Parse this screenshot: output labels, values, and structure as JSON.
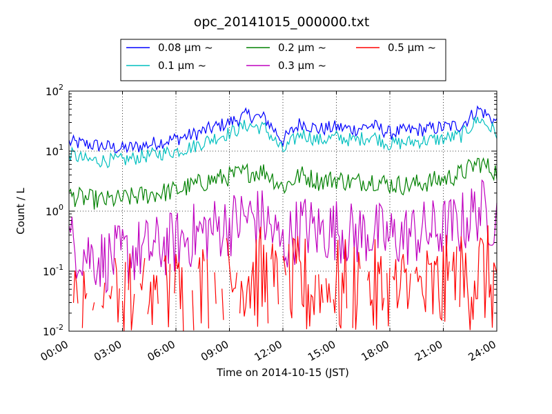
{
  "chart_data": {
    "type": "line",
    "title": "opc_20141015_000000.txt",
    "xlabel": "Time on 2014-10-15 (JST)",
    "ylabel": "Count / L",
    "x_ticks": [
      "00:00",
      "03:00",
      "06:00",
      "09:00",
      "12:00",
      "15:00",
      "18:00",
      "21:00",
      "24:00"
    ],
    "x_hours": [
      0,
      3,
      6,
      9,
      12,
      15,
      18,
      21,
      24
    ],
    "y_scale": "log",
    "ylim": [
      0.01,
      100
    ],
    "y_ticks": [
      {
        "base": "10",
        "exp": "-2",
        "value": 0.01
      },
      {
        "base": "10",
        "exp": "-1",
        "value": 0.1
      },
      {
        "base": "10",
        "exp": "0",
        "value": 1
      },
      {
        "base": "10",
        "exp": "1",
        "value": 10
      },
      {
        "base": "10",
        "exp": "2",
        "value": 100
      }
    ],
    "grid": true,
    "legend_position": "top-center",
    "x": [
      0,
      1,
      2,
      3,
      4,
      5,
      6,
      7,
      8,
      9,
      10,
      11,
      12,
      13,
      14,
      15,
      16,
      17,
      18,
      19,
      20,
      21,
      22,
      23,
      24
    ],
    "series": [
      {
        "name": "0.08 μm ~",
        "color": "#0000ff",
        "values": [
          14,
          13,
          12,
          11,
          12,
          14,
          16,
          19,
          24,
          30,
          40,
          35,
          15,
          30,
          23,
          25,
          23,
          27,
          20,
          22,
          23,
          25,
          27,
          50,
          30
        ]
      },
      {
        "name": "0.1 μm ~",
        "color": "#00bfbf",
        "values": [
          9,
          7,
          7,
          7,
          8,
          9,
          10,
          12,
          16,
          20,
          27,
          24,
          10,
          20,
          15,
          17,
          15,
          18,
          13,
          14,
          15,
          16,
          18,
          35,
          20
        ]
      },
      {
        "name": "0.2 μm ~",
        "color": "#008000",
        "values": [
          1.8,
          1.6,
          1.5,
          1.6,
          1.8,
          2.0,
          2.2,
          2.7,
          3.3,
          3.8,
          4.4,
          4.6,
          2.5,
          4.0,
          3.2,
          3.4,
          3.0,
          3.3,
          2.8,
          2.7,
          3.0,
          3.4,
          4.2,
          6.5,
          4.5
        ]
      },
      {
        "name": "0.3 μm ~",
        "color": "#bf00bf",
        "values": [
          0.3,
          0.2,
          0.15,
          0.18,
          0.22,
          0.25,
          0.3,
          0.4,
          0.5,
          0.6,
          0.8,
          0.7,
          0.25,
          0.6,
          0.45,
          0.5,
          0.4,
          0.45,
          0.35,
          0.4,
          0.45,
          0.5,
          0.6,
          1.1,
          0.7
        ]
      },
      {
        "name": "0.5 μm ~",
        "color": "#ff0000",
        "values": [
          0.02,
          0.015,
          0.03,
          0.03,
          0.025,
          0.03,
          0.035,
          0.04,
          0.05,
          0.06,
          0.09,
          0.07,
          0.03,
          0.06,
          0.04,
          0.05,
          0.04,
          0.045,
          0.035,
          0.04,
          0.04,
          0.05,
          0.06,
          0.1,
          0.06
        ]
      }
    ]
  }
}
